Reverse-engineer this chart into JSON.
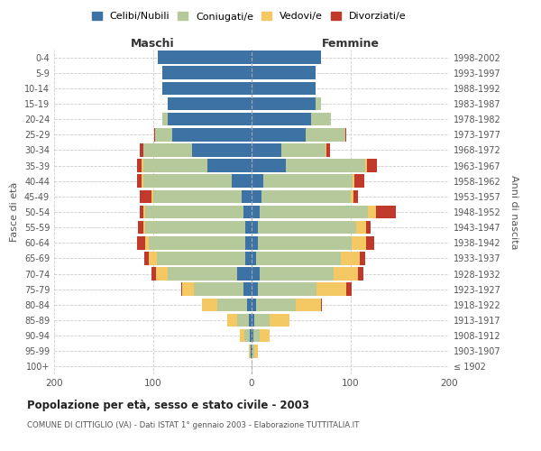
{
  "age_groups": [
    "100+",
    "95-99",
    "90-94",
    "85-89",
    "80-84",
    "75-79",
    "70-74",
    "65-69",
    "60-64",
    "55-59",
    "50-54",
    "45-49",
    "40-44",
    "35-39",
    "30-34",
    "25-29",
    "20-24",
    "15-19",
    "10-14",
    "5-9",
    "0-4"
  ],
  "birth_years": [
    "≤ 1902",
    "1903-1907",
    "1908-1912",
    "1913-1917",
    "1918-1922",
    "1923-1927",
    "1928-1932",
    "1933-1937",
    "1938-1942",
    "1943-1947",
    "1948-1952",
    "1953-1957",
    "1958-1962",
    "1963-1967",
    "1968-1972",
    "1973-1977",
    "1978-1982",
    "1983-1987",
    "1988-1992",
    "1993-1997",
    "1998-2002"
  ],
  "male": {
    "celibi": [
      0,
      1,
      2,
      3,
      5,
      8,
      15,
      6,
      6,
      6,
      8,
      10,
      20,
      45,
      60,
      80,
      85,
      85,
      90,
      90,
      95
    ],
    "coniugati": [
      0,
      1,
      5,
      12,
      30,
      50,
      70,
      90,
      98,
      102,
      100,
      90,
      90,
      65,
      50,
      18,
      5,
      0,
      0,
      0,
      0
    ],
    "vedovi": [
      0,
      1,
      5,
      10,
      15,
      12,
      12,
      8,
      4,
      2,
      2,
      1,
      1,
      1,
      0,
      0,
      0,
      0,
      0,
      0,
      0
    ],
    "divorziati": [
      0,
      0,
      0,
      0,
      0,
      1,
      4,
      5,
      8,
      5,
      3,
      12,
      5,
      5,
      3,
      1,
      0,
      0,
      0,
      0,
      0
    ]
  },
  "female": {
    "nubili": [
      0,
      1,
      2,
      3,
      5,
      6,
      8,
      5,
      6,
      6,
      8,
      10,
      12,
      35,
      30,
      55,
      60,
      65,
      65,
      65,
      70
    ],
    "coniugate": [
      0,
      2,
      6,
      15,
      40,
      60,
      75,
      85,
      95,
      100,
      110,
      90,
      90,
      80,
      45,
      40,
      20,
      5,
      0,
      0,
      0
    ],
    "vedove": [
      0,
      3,
      10,
      20,
      25,
      30,
      25,
      20,
      15,
      10,
      8,
      3,
      2,
      2,
      1,
      0,
      0,
      0,
      0,
      0,
      0
    ],
    "divorziate": [
      0,
      0,
      0,
      0,
      1,
      5,
      5,
      5,
      8,
      5,
      20,
      5,
      10,
      10,
      3,
      1,
      0,
      0,
      0,
      0,
      0
    ]
  },
  "colors": {
    "celibi": "#3d72a4",
    "coniugati": "#b5c99a",
    "vedovi": "#f4c862",
    "divorziati": "#c0392b"
  },
  "xlim": 200,
  "title": "Popolazione per età, sesso e stato civile - 2003",
  "subtitle": "COMUNE DI CITTIGLIO (VA) - Dati ISTAT 1° gennaio 2003 - Elaborazione TUTTITALIA.IT",
  "xlabel_left": "Maschi",
  "xlabel_right": "Femmine",
  "ylabel_left": "Fasce di età",
  "ylabel_right": "Anni di nascita",
  "legend_labels": [
    "Celibi/Nubili",
    "Coniugati/e",
    "Vedovi/e",
    "Divorziati/e"
  ],
  "background_color": "#ffffff",
  "bar_height": 0.85
}
